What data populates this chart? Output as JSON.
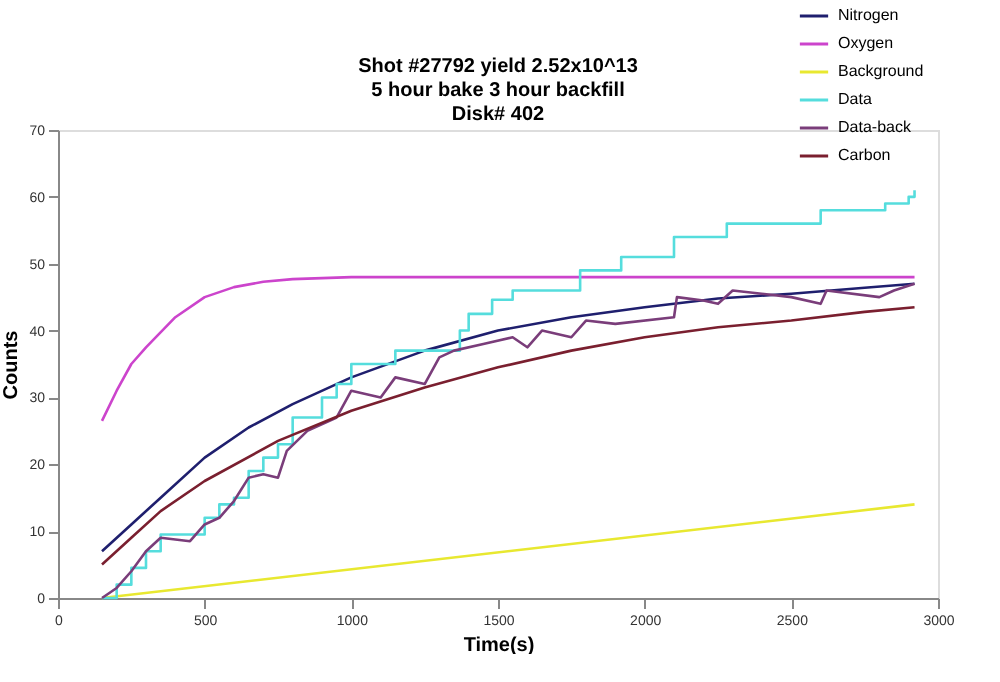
{
  "chart_data": {
    "type": "line",
    "title": "Shot #27792   yield 2.52x10^13\n5 hour bake 3 hour backfill\nDisk# 402",
    "xlabel": "Time(s)",
    "ylabel": "Counts",
    "xlim": [
      0,
      3000
    ],
    "xticks": [
      0,
      500,
      1000,
      1500,
      2000,
      2500,
      3000
    ],
    "ylim": [
      0,
      70
    ],
    "yticks": [
      0,
      10,
      20,
      30,
      40,
      50,
      60,
      70
    ],
    "grid": false,
    "legend": "top right",
    "marker": "none",
    "line_style": "solid",
    "series": [
      {
        "name": "Nitrogen",
        "color": "#1f1f6e",
        "x": [
          150,
          250,
          350,
          500,
          650,
          800,
          1000,
          1250,
          1500,
          1750,
          2000,
          2250,
          2500,
          2750,
          2920
        ],
        "values": [
          7,
          11,
          15,
          21,
          25.5,
          29,
          33,
          37,
          40,
          42,
          43.5,
          44.8,
          45.5,
          46.4,
          47
        ]
      },
      {
        "name": "Oxygen",
        "color": "#cc44cc",
        "x": [
          150,
          200,
          250,
          300,
          400,
          500,
          600,
          700,
          800,
          1000,
          1500,
          2000,
          2500,
          2920
        ],
        "values": [
          26.5,
          31,
          35,
          37.5,
          42,
          45,
          46.5,
          47.3,
          47.7,
          48,
          48,
          48,
          48,
          48
        ]
      },
      {
        "name": "Background",
        "color": "#e8e830",
        "x": [
          150,
          2920
        ],
        "values": [
          0,
          14
        ]
      },
      {
        "name": "Data",
        "color": "#55dddd",
        "type": "step",
        "x": [
          150,
          200,
          250,
          300,
          350,
          500,
          550,
          600,
          650,
          700,
          750,
          800,
          900,
          950,
          1000,
          1150,
          1300,
          1370,
          1400,
          1480,
          1550,
          1780,
          1920,
          2100,
          2280,
          2600,
          2820,
          2900,
          2920
        ],
        "values": [
          0,
          2,
          4.5,
          7,
          9.5,
          12,
          14,
          15,
          19,
          21,
          23,
          27,
          30,
          32,
          35,
          37,
          37,
          40,
          42.5,
          44.6,
          46,
          49,
          51,
          54,
          56,
          58,
          59,
          60,
          61
        ]
      },
      {
        "name": "Data-back",
        "color": "#7a3d7a",
        "x": [
          150,
          200,
          250,
          300,
          350,
          450,
          500,
          550,
          600,
          650,
          700,
          750,
          780,
          850,
          950,
          1000,
          1100,
          1150,
          1250,
          1300,
          1350,
          1450,
          1550,
          1600,
          1650,
          1750,
          1800,
          1900,
          2100,
          2110,
          2200,
          2250,
          2300,
          2500,
          2600,
          2620,
          2800,
          2850,
          2920
        ],
        "values": [
          0,
          1.5,
          4,
          7,
          9,
          8.5,
          11,
          12,
          14.5,
          18,
          18.5,
          18,
          22,
          25,
          27,
          31,
          30,
          33,
          32,
          36,
          37,
          38,
          39,
          37.5,
          40,
          39,
          41.5,
          41,
          42,
          45,
          44.5,
          44,
          46,
          45,
          44,
          46,
          45,
          46,
          47
        ]
      },
      {
        "name": "Carbon",
        "color": "#7a1f2f",
        "x": [
          150,
          250,
          350,
          500,
          750,
          1000,
          1250,
          1500,
          1750,
          2000,
          2250,
          2500,
          2750,
          2920
        ],
        "values": [
          5,
          9,
          13,
          17.5,
          23.5,
          28,
          31.5,
          34.5,
          37,
          39,
          40.5,
          41.5,
          42.8,
          43.5
        ]
      }
    ]
  }
}
